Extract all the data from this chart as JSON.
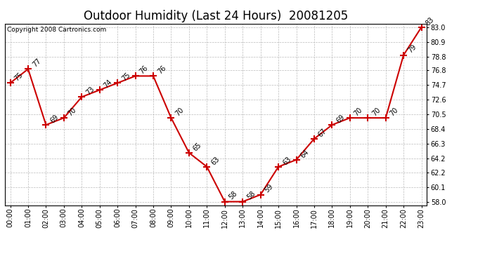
{
  "title": "Outdoor Humidity (Last 24 Hours)  20081205",
  "copyright": "Copyright 2008 Cartronics.com",
  "hours": [
    0,
    1,
    2,
    3,
    4,
    5,
    6,
    7,
    8,
    9,
    10,
    11,
    12,
    13,
    14,
    15,
    16,
    17,
    18,
    19,
    20,
    21,
    22,
    23
  ],
  "values": [
    75,
    77,
    69,
    70,
    73,
    74,
    75,
    76,
    76,
    70,
    65,
    63,
    58,
    58,
    59,
    63,
    64,
    67,
    69,
    70,
    70,
    70,
    79,
    83
  ],
  "x_labels": [
    "00:00",
    "01:00",
    "02:00",
    "03:00",
    "04:00",
    "05:00",
    "06:00",
    "07:00",
    "08:00",
    "09:00",
    "10:00",
    "11:00",
    "12:00",
    "13:00",
    "14:00",
    "15:00",
    "16:00",
    "17:00",
    "18:00",
    "19:00",
    "20:00",
    "21:00",
    "22:00",
    "23:00"
  ],
  "y_ticks": [
    58.0,
    60.1,
    62.2,
    64.2,
    66.3,
    68.4,
    70.5,
    72.6,
    74.7,
    76.8,
    78.8,
    80.9,
    83.0
  ],
  "y_tick_labels": [
    "58.0",
    "60.1",
    "62.2",
    "64.2",
    "66.3",
    "68.4",
    "70.5",
    "72.6",
    "74.7",
    "76.8",
    "78.8",
    "80.9",
    "83.0"
  ],
  "ylim": [
    57.5,
    83.5
  ],
  "xlim": [
    -0.3,
    23.3
  ],
  "line_color": "#cc0000",
  "marker": "+",
  "marker_color": "#cc0000",
  "bg_color": "#ffffff",
  "plot_bg_color": "#ffffff",
  "grid_color": "#bbbbbb",
  "title_fontsize": 12,
  "tick_fontsize": 7,
  "annotation_fontsize": 7,
  "copyright_fontsize": 6.5
}
